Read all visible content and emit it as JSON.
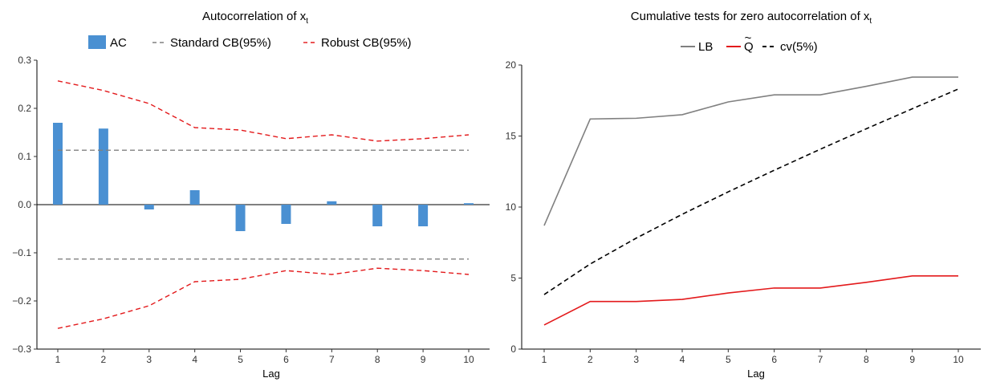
{
  "chart_data": [
    {
      "type": "bar",
      "title_main": "Autocorrelation of x",
      "title_sub": "t",
      "xlabel": "Lag",
      "ylabel": "",
      "ylim": [
        -0.3,
        0.3
      ],
      "yticks": [
        -0.3,
        -0.2,
        -0.1,
        0.0,
        0.1,
        0.2,
        0.3
      ],
      "ytick_labels": [
        "−0.3",
        "−0.2",
        "−0.1",
        "0.0",
        "0.1",
        "0.2",
        "0.3"
      ],
      "categories": [
        "1",
        "2",
        "3",
        "4",
        "5",
        "6",
        "7",
        "8",
        "9",
        "10"
      ],
      "grid": false,
      "legend_position": "top-center",
      "series": [
        {
          "name": "AC",
          "kind": "bar",
          "color": "#4a90d2",
          "values": [
            0.17,
            0.158,
            -0.01,
            0.03,
            -0.055,
            -0.04,
            0.007,
            -0.045,
            -0.045,
            0.003
          ]
        },
        {
          "name": "Standard CB(95%)",
          "kind": "dashed-band",
          "color": "#808080",
          "values": [
            0.113,
            0.113,
            0.113,
            0.113,
            0.113,
            0.113,
            0.113,
            0.113,
            0.113,
            0.113
          ]
        },
        {
          "name": "Robust CB(95%)",
          "kind": "dashed-band",
          "color": "#e31a1c",
          "values": [
            0.257,
            0.237,
            0.21,
            0.16,
            0.155,
            0.137,
            0.145,
            0.132,
            0.137,
            0.145
          ]
        }
      ]
    },
    {
      "type": "line",
      "title_main": "Cumulative tests for zero autocorrelation of x",
      "title_sub": "t",
      "xlabel": "Lag",
      "ylabel": "",
      "ylim": [
        0,
        20
      ],
      "yticks": [
        0,
        5,
        10,
        15,
        20
      ],
      "ytick_labels": [
        "0",
        "5",
        "10",
        "15",
        "20"
      ],
      "x": [
        1,
        2,
        3,
        4,
        5,
        6,
        7,
        8,
        9,
        10
      ],
      "grid": false,
      "legend_position": "top-center",
      "series": [
        {
          "name": "LB",
          "color": "#808080",
          "dash": false,
          "values": [
            8.7,
            16.2,
            16.25,
            16.5,
            17.4,
            17.9,
            17.9,
            18.5,
            19.15,
            19.15
          ]
        },
        {
          "name": "Q",
          "name_accent": "~",
          "color": "#e31a1c",
          "dash": false,
          "values": [
            1.7,
            3.35,
            3.35,
            3.5,
            3.95,
            4.3,
            4.3,
            4.7,
            5.15,
            5.15
          ]
        },
        {
          "name": "cv(5%)",
          "color": "#000000",
          "dash": true,
          "values": [
            3.84,
            5.99,
            7.81,
            9.49,
            11.07,
            12.59,
            14.07,
            15.51,
            16.92,
            18.31
          ]
        }
      ]
    }
  ]
}
